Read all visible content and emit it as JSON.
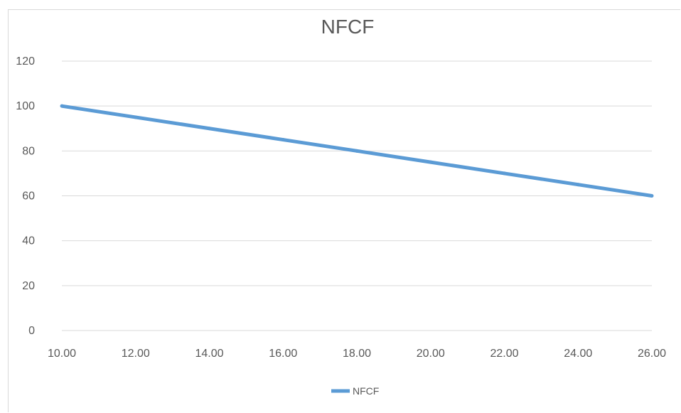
{
  "chart_data": {
    "type": "line",
    "title": "NFCF",
    "xlabel": "",
    "ylabel": "",
    "x": [
      10,
      12,
      14,
      16,
      18,
      20,
      22,
      24,
      26
    ],
    "x_tick_labels": [
      "10.00",
      "12.00",
      "14.00",
      "16.00",
      "18.00",
      "20.00",
      "22.00",
      "24.00",
      "26.00"
    ],
    "xlim": [
      10,
      26
    ],
    "ylim": [
      0,
      120
    ],
    "y_ticks": [
      0,
      20,
      40,
      60,
      80,
      100,
      120
    ],
    "grid": true,
    "legend": "bottom",
    "series": [
      {
        "name": "NFCF",
        "color": "#5b9bd5",
        "values": [
          100,
          95,
          90,
          85,
          80,
          75,
          70,
          65,
          60
        ]
      }
    ]
  }
}
